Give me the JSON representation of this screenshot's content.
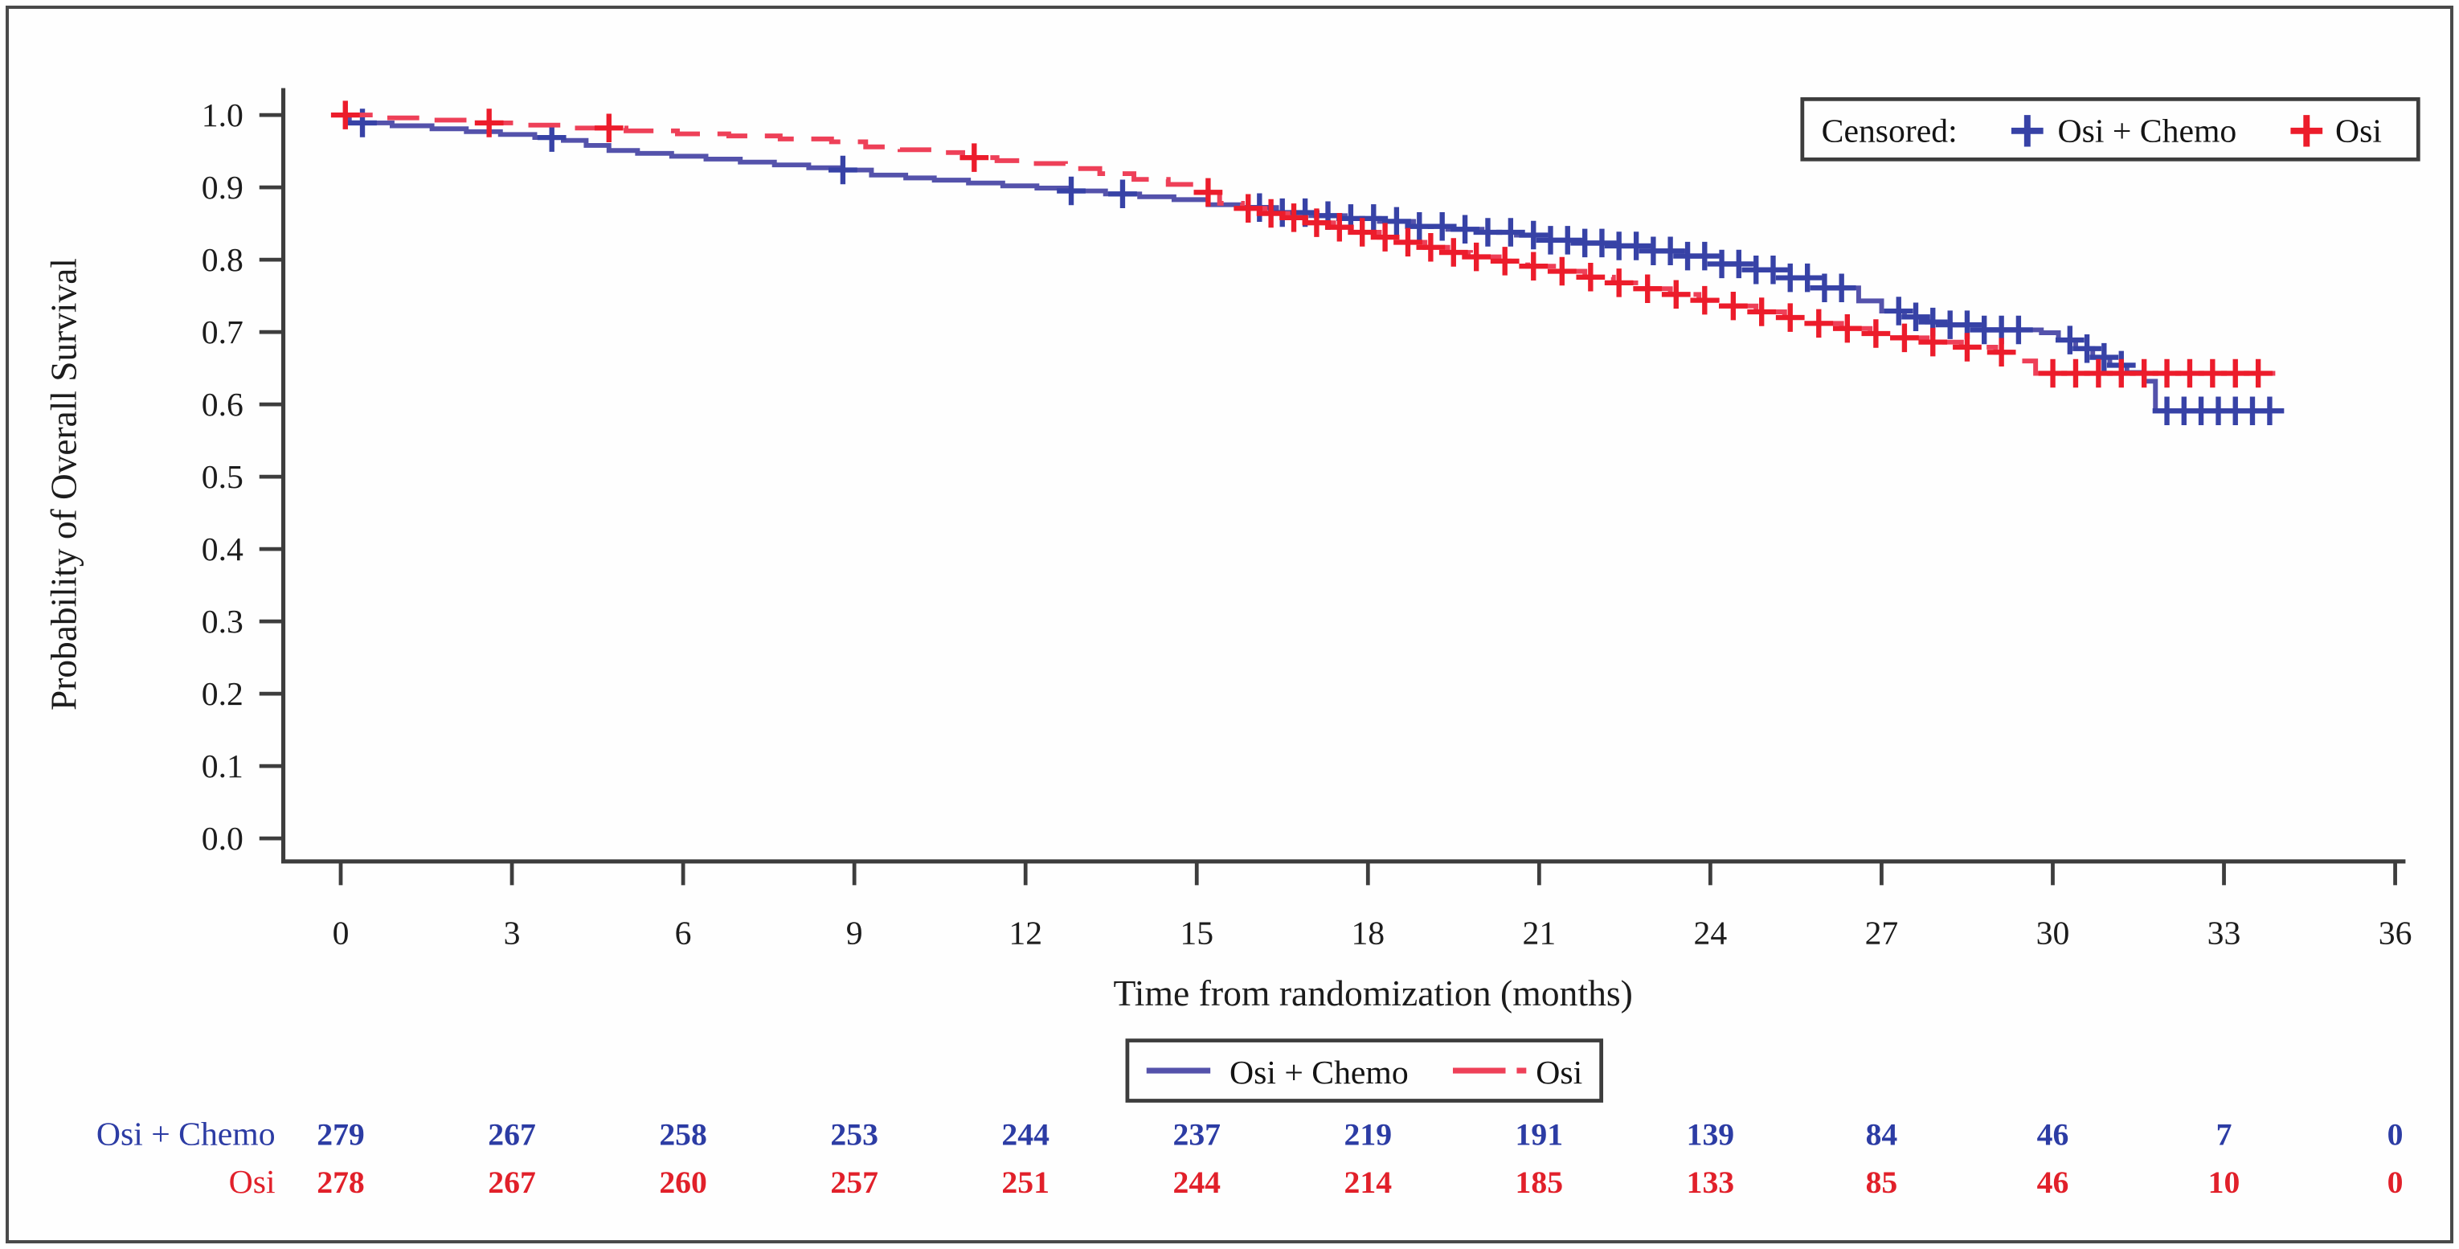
{
  "chart_data": {
    "type": "line",
    "chart_kind": "kaplan-meier-survival",
    "title": "",
    "xlabel": "Time from randomization (months)",
    "ylabel": "Probability of Overall Survival",
    "xlim": [
      0,
      36
    ],
    "ylim": [
      0.0,
      1.0
    ],
    "xticks": [
      0,
      3,
      6,
      9,
      12,
      15,
      18,
      21,
      24,
      27,
      30,
      33,
      36
    ],
    "yticks": [
      0.0,
      0.1,
      0.2,
      0.3,
      0.4,
      0.5,
      0.6,
      0.7,
      0.8,
      0.9,
      1.0
    ],
    "grid": false,
    "legend_position": "bottom-center",
    "axis_color": "#3d3d3d",
    "text_color": "#1c1c1c",
    "censored_legend": {
      "label": "Censored:",
      "position": "top-right"
    },
    "series": [
      {
        "name": "Osi + Chemo",
        "color": "#5452ab",
        "censor_color": "#3742a6",
        "line_style": "solid",
        "points": [
          [
            0,
            1
          ],
          [
            0.15,
            0.989
          ],
          [
            0.9,
            0.985
          ],
          [
            1.6,
            0.981
          ],
          [
            2.2,
            0.977
          ],
          [
            2.8,
            0.973
          ],
          [
            3.4,
            0.969
          ],
          [
            3.9,
            0.965
          ],
          [
            4.3,
            0.958
          ],
          [
            4.7,
            0.951
          ],
          [
            5.2,
            0.947
          ],
          [
            5.8,
            0.943
          ],
          [
            6.4,
            0.939
          ],
          [
            7,
            0.935
          ],
          [
            7.6,
            0.931
          ],
          [
            8.2,
            0.927
          ],
          [
            8.8,
            0.924
          ],
          [
            9.3,
            0.917
          ],
          [
            9.9,
            0.913
          ],
          [
            10.4,
            0.91
          ],
          [
            11,
            0.906
          ],
          [
            11.6,
            0.902
          ],
          [
            12.2,
            0.899
          ],
          [
            12.8,
            0.895
          ],
          [
            13.4,
            0.891
          ],
          [
            14,
            0.887
          ],
          [
            14.6,
            0.883
          ],
          [
            15.2,
            0.876
          ],
          [
            15.8,
            0.872
          ],
          [
            16.4,
            0.865
          ],
          [
            17,
            0.861
          ],
          [
            17.6,
            0.857
          ],
          [
            18.2,
            0.853
          ],
          [
            18.8,
            0.846
          ],
          [
            19.4,
            0.842
          ],
          [
            20,
            0.838
          ],
          [
            20.6,
            0.834
          ],
          [
            21.2,
            0.827
          ],
          [
            21.8,
            0.823
          ],
          [
            22.4,
            0.819
          ],
          [
            23,
            0.812
          ],
          [
            23.6,
            0.805
          ],
          [
            24.2,
            0.794
          ],
          [
            24.8,
            0.786
          ],
          [
            25.4,
            0.775
          ],
          [
            26,
            0.761
          ],
          [
            26.6,
            0.743
          ],
          [
            27,
            0.729
          ],
          [
            27.4,
            0.721
          ],
          [
            27.8,
            0.714
          ],
          [
            28.2,
            0.71
          ],
          [
            28.8,
            0.703
          ],
          [
            29.8,
            0.699
          ],
          [
            30.1,
            0.689
          ],
          [
            30.4,
            0.677
          ],
          [
            30.7,
            0.665
          ],
          [
            31,
            0.654
          ],
          [
            31.3,
            0.644
          ],
          [
            31.6,
            0.632
          ],
          [
            31.8,
            0.591
          ],
          [
            34.05,
            0.591
          ]
        ],
        "censor_times": [
          0.38,
          3.7,
          8.8,
          12.8,
          13.7,
          16.1,
          16.5,
          16.9,
          17.3,
          17.7,
          18.1,
          18.5,
          18.9,
          19.3,
          19.7,
          20.1,
          20.5,
          20.9,
          21.2,
          21.5,
          21.8,
          22.1,
          22.4,
          22.7,
          23,
          23.3,
          23.6,
          23.9,
          24.2,
          24.5,
          24.8,
          25.1,
          25.4,
          25.7,
          26,
          26.3,
          27.3,
          27.6,
          27.9,
          28.2,
          28.5,
          28.8,
          29.1,
          29.4,
          30.3,
          30.6,
          30.9,
          31.2,
          32,
          32.3,
          32.6,
          32.9,
          33.2,
          33.5,
          33.8
        ]
      },
      {
        "name": "Osi",
        "color": "#ee4058",
        "censor_color": "#ec1c2b",
        "line_style": "dashed",
        "points": [
          [
            0,
            1
          ],
          [
            0.7,
            0.996
          ],
          [
            1.5,
            0.993
          ],
          [
            2.3,
            0.989
          ],
          [
            3.2,
            0.986
          ],
          [
            4.1,
            0.982
          ],
          [
            5,
            0.978
          ],
          [
            5.9,
            0.974
          ],
          [
            6.8,
            0.971
          ],
          [
            7.7,
            0.967
          ],
          [
            8.6,
            0.963
          ],
          [
            9.2,
            0.956
          ],
          [
            9.8,
            0.952
          ],
          [
            10.4,
            0.948
          ],
          [
            10.9,
            0.941
          ],
          [
            11.5,
            0.937
          ],
          [
            12.1,
            0.933
          ],
          [
            12.7,
            0.926
          ],
          [
            13.3,
            0.919
          ],
          [
            13.9,
            0.911
          ],
          [
            14.5,
            0.904
          ],
          [
            15,
            0.893
          ],
          [
            15.4,
            0.878
          ],
          [
            15.8,
            0.871
          ],
          [
            16.2,
            0.864
          ],
          [
            16.6,
            0.858
          ],
          [
            17,
            0.851
          ],
          [
            17.4,
            0.845
          ],
          [
            17.8,
            0.838
          ],
          [
            18.2,
            0.831
          ],
          [
            18.6,
            0.824
          ],
          [
            19,
            0.817
          ],
          [
            19.4,
            0.81
          ],
          [
            19.8,
            0.804
          ],
          [
            20.3,
            0.798
          ],
          [
            20.8,
            0.791
          ],
          [
            21.3,
            0.784
          ],
          [
            21.8,
            0.776
          ],
          [
            22.3,
            0.768
          ],
          [
            22.8,
            0.76
          ],
          [
            23.3,
            0.752
          ],
          [
            23.8,
            0.744
          ],
          [
            24.3,
            0.736
          ],
          [
            24.8,
            0.728
          ],
          [
            25.3,
            0.72
          ],
          [
            25.8,
            0.712
          ],
          [
            26.3,
            0.705
          ],
          [
            26.8,
            0.698
          ],
          [
            27.3,
            0.692
          ],
          [
            27.8,
            0.686
          ],
          [
            28.4,
            0.679
          ],
          [
            29,
            0.672
          ],
          [
            29.4,
            0.66
          ],
          [
            29.7,
            0.643
          ],
          [
            33.9,
            0.643
          ]
        ],
        "censor_times": [
          0.08,
          2.6,
          4.7,
          11.1,
          15.2,
          15.9,
          16.3,
          16.7,
          17.1,
          17.5,
          17.9,
          18.3,
          18.7,
          19.1,
          19.5,
          19.9,
          20.4,
          20.9,
          21.4,
          21.9,
          22.4,
          22.9,
          23.4,
          23.9,
          24.4,
          24.9,
          25.4,
          25.9,
          26.4,
          26.9,
          27.4,
          27.9,
          28.5,
          29.1,
          30,
          30.4,
          30.8,
          31.2,
          31.6,
          32,
          32.4,
          32.8,
          33.2,
          33.6
        ]
      }
    ],
    "risk_table": {
      "times": [
        0,
        3,
        6,
        9,
        12,
        15,
        18,
        21,
        24,
        27,
        30,
        33,
        36
      ],
      "rows": [
        {
          "name": "Osi + Chemo",
          "color": "#2c3ca4",
          "counts": [
            279,
            267,
            258,
            253,
            244,
            237,
            219,
            191,
            139,
            84,
            46,
            7,
            0
          ]
        },
        {
          "name": "Osi",
          "color": "#e1202a",
          "counts": [
            278,
            267,
            260,
            257,
            251,
            244,
            214,
            185,
            133,
            85,
            46,
            10,
            0
          ]
        }
      ]
    }
  }
}
